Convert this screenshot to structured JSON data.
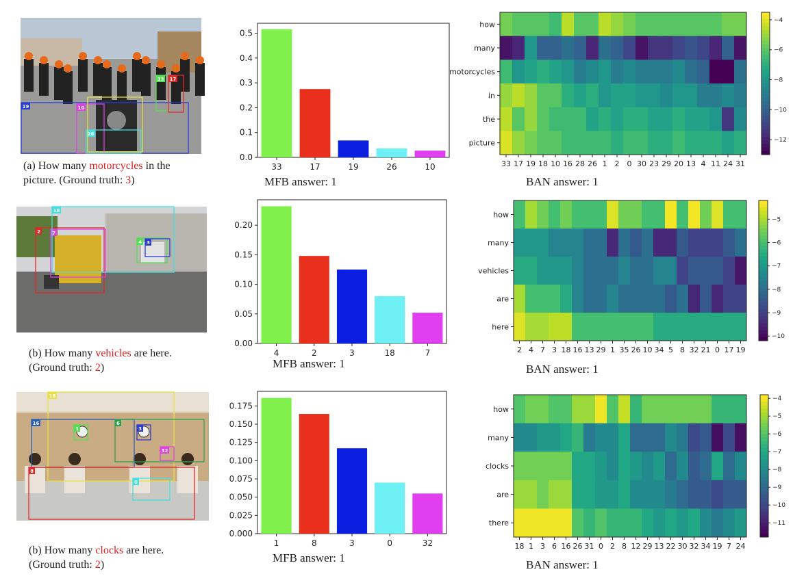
{
  "rows": [
    {
      "caption": {
        "prefix": "(a)  How many ",
        "highlight": "motorcycles",
        "suffix": " in the",
        "line2_prefix": "picture. (Ground truth: ",
        "gt": "3",
        "line2_suffix": ")"
      },
      "photo": {
        "kind": "street",
        "boxes": [
          {
            "label": "19",
            "color": "#2a3bd6"
          },
          {
            "label": "10",
            "color": "#e040e0"
          },
          {
            "label": "26",
            "color": "#40e0e0"
          },
          {
            "label": "33",
            "color": "#50e050"
          },
          {
            "label": "17",
            "color": "#e02828"
          },
          {
            "label": "",
            "color": "#e8e040"
          }
        ]
      },
      "mfb_answer": "MFB answer:  1",
      "ban_answer": "BAN answer: 1"
    },
    {
      "caption": {
        "prefix": "(b) How many ",
        "highlight": "vehicles",
        "suffix": " are here.",
        "line2_prefix": " (Ground truth:  ",
        "gt": "2",
        "line2_suffix": ")"
      },
      "photo": {
        "kind": "road",
        "boxes": [
          {
            "label": "2",
            "color": "#e02828"
          },
          {
            "label": "7",
            "color": "#e040e0"
          },
          {
            "label": "18",
            "color": "#40e0e0"
          },
          {
            "label": "4",
            "color": "#50e050"
          },
          {
            "label": "3",
            "color": "#2a3bd6"
          }
        ]
      },
      "mfb_answer": "MFB answer:  1",
      "ban_answer": "BAN answer: 1"
    },
    {
      "caption": {
        "prefix": "(b) How many ",
        "highlight": "clocks",
        "suffix": " are here.",
        "line2_prefix": " (Ground truth:  ",
        "gt": "2",
        "line2_suffix": ")"
      },
      "photo": {
        "kind": "office",
        "boxes": [
          {
            "label": "18",
            "color": "#e8e040"
          },
          {
            "label": "16",
            "color": "#2a5cb0"
          },
          {
            "label": "1",
            "color": "#50e050"
          },
          {
            "label": "6",
            "color": "#30a050"
          },
          {
            "label": "3",
            "color": "#2a3bd6"
          },
          {
            "label": "32",
            "color": "#e040e0"
          },
          {
            "label": "8",
            "color": "#e02828"
          },
          {
            "label": "0",
            "color": "#40e0e0"
          }
        ]
      },
      "mfb_answer": "MFB answer:  1",
      "ban_answer": "BAN answer: 1"
    }
  ],
  "chart_data": [
    {
      "type": "bar",
      "name": "MFB row 1",
      "categories": [
        "33",
        "17",
        "19",
        "26",
        "10"
      ],
      "values": [
        0.516,
        0.275,
        0.068,
        0.036,
        0.027
      ],
      "colors": [
        "#7ff04c",
        "#e8301c",
        "#0a1fe0",
        "#6ff0f5",
        "#e03ff0"
      ],
      "ylim": [
        0,
        0.54
      ],
      "yticks": [
        "0.0",
        "0.1",
        "0.2",
        "0.3",
        "0.4",
        "0.5"
      ],
      "ytick_values": [
        0,
        0.1,
        0.2,
        0.3,
        0.4,
        0.5
      ]
    },
    {
      "type": "bar",
      "name": "MFB row 2",
      "categories": [
        "4",
        "2",
        "3",
        "18",
        "7"
      ],
      "values": [
        0.232,
        0.148,
        0.125,
        0.08,
        0.052
      ],
      "colors": [
        "#7ff04c",
        "#e8301c",
        "#0a1fe0",
        "#6ff0f5",
        "#e03ff0"
      ],
      "ylim": [
        0,
        0.243
      ],
      "yticks": [
        "0.00",
        "0.05",
        "0.10",
        "0.15",
        "0.20"
      ],
      "ytick_values": [
        0,
        0.05,
        0.1,
        0.15,
        0.2
      ]
    },
    {
      "type": "bar",
      "name": "MFB row 3",
      "categories": [
        "1",
        "8",
        "3",
        "0",
        "32"
      ],
      "values": [
        0.186,
        0.164,
        0.117,
        0.07,
        0.055
      ],
      "colors": [
        "#7ff04c",
        "#e8301c",
        "#0a1fe0",
        "#6ff0f5",
        "#e03ff0"
      ],
      "ylim": [
        0,
        0.195
      ],
      "yticks": [
        "0.000",
        "0.025",
        "0.050",
        "0.075",
        "0.100",
        "0.125",
        "0.150",
        "0.175"
      ],
      "ytick_values": [
        0,
        0.025,
        0.05,
        0.075,
        0.1,
        0.125,
        0.15,
        0.175
      ]
    },
    {
      "type": "heatmap",
      "name": "BAN row 1",
      "rows": [
        "how",
        "many",
        "motorcycles",
        "in",
        "the",
        "picture"
      ],
      "columns": [
        "33",
        "17",
        "19",
        "18",
        "10",
        "16",
        "28",
        "26",
        "1",
        "2",
        "0",
        "30",
        "23",
        "29",
        "20",
        "13",
        "4",
        "11",
        "24",
        "31"
      ],
      "values": [
        [
          -5.5,
          -6.0,
          -6.0,
          -6.0,
          -6.5,
          -4.5,
          -6.0,
          -6.0,
          -4.5,
          -5.0,
          -5.5,
          -6.0,
          -6.0,
          -6.0,
          -6.0,
          -6.0,
          -6.0,
          -6.0,
          -5.5,
          -5.5
        ],
        [
          -12.5,
          -12.0,
          -8.0,
          -10.0,
          -10.0,
          -9.5,
          -10.0,
          -12.0,
          -9.5,
          -10.0,
          -11.0,
          -12.5,
          -11.5,
          -11.5,
          -11.0,
          -10.5,
          -11.0,
          -12.0,
          -10.0,
          -12.5
        ],
        [
          -6.5,
          -8.0,
          -7.5,
          -7.0,
          -7.5,
          -8.0,
          -9.0,
          -8.5,
          -8.0,
          -9.0,
          -8.5,
          -9.0,
          -9.0,
          -9.0,
          -8.5,
          -9.5,
          -10.0,
          -13.0,
          -13.0,
          -9.5
        ],
        [
          -5.0,
          -4.5,
          -5.0,
          -6.0,
          -6.0,
          -7.0,
          -7.5,
          -7.0,
          -8.0,
          -7.5,
          -7.5,
          -8.0,
          -8.0,
          -8.5,
          -8.0,
          -8.0,
          -9.0,
          -9.0,
          -8.5,
          -9.0
        ],
        [
          -4.5,
          -6.0,
          -5.0,
          -6.0,
          -6.5,
          -6.5,
          -6.5,
          -7.5,
          -7.0,
          -7.5,
          -7.0,
          -7.0,
          -7.5,
          -7.5,
          -7.0,
          -7.5,
          -7.5,
          -8.0,
          -11.5,
          -8.5
        ],
        [
          -4.0,
          -5.0,
          -5.5,
          -6.0,
          -6.0,
          -6.5,
          -6.5,
          -6.5,
          -6.5,
          -7.0,
          -6.5,
          -6.5,
          -7.0,
          -7.0,
          -6.5,
          -7.0,
          -7.0,
          -7.0,
          -7.5,
          -7.0
        ]
      ],
      "vmin": -13,
      "vmax": -3.5,
      "cbar_ticks": [
        -4,
        -6,
        -8,
        -10,
        -12
      ],
      "cbar_labels": [
        "−4",
        "−6",
        "−8",
        "−10",
        "−12"
      ]
    },
    {
      "type": "heatmap",
      "name": "BAN row 2",
      "rows": [
        "how",
        "many",
        "vehicles",
        "are",
        "here"
      ],
      "columns": [
        "2",
        "4",
        "7",
        "3",
        "18",
        "16",
        "13",
        "29",
        "1",
        "35",
        "26",
        "10",
        "34",
        "5",
        "8",
        "32",
        "21",
        "0",
        "17",
        "19"
      ],
      "values": [
        [
          -6.0,
          -5.0,
          -5.5,
          -6.0,
          -5.5,
          -6.0,
          -6.0,
          -6.0,
          -4.5,
          -5.5,
          -5.5,
          -6.0,
          -6.0,
          -4.3,
          -6.0,
          -4.3,
          -5.5,
          -4.5,
          -6.0,
          -6.0
        ],
        [
          -7.0,
          -7.0,
          -7.0,
          -7.5,
          -7.5,
          -7.5,
          -8.0,
          -8.0,
          -9.5,
          -8.0,
          -8.5,
          -8.0,
          -9.5,
          -9.5,
          -8.5,
          -9.0,
          -9.0,
          -9.0,
          -8.5,
          -8.0
        ],
        [
          -6.5,
          -6.5,
          -7.0,
          -7.0,
          -7.0,
          -7.5,
          -8.0,
          -8.0,
          -8.0,
          -7.5,
          -8.0,
          -8.0,
          -7.5,
          -7.5,
          -9.0,
          -8.5,
          -8.5,
          -8.5,
          -9.0,
          -9.8
        ],
        [
          -5.0,
          -6.0,
          -6.0,
          -6.0,
          -6.5,
          -7.5,
          -8.0,
          -8.0,
          -7.5,
          -8.0,
          -8.0,
          -8.0,
          -8.0,
          -8.5,
          -8.0,
          -9.5,
          -8.5,
          -9.5,
          -9.0,
          -9.0
        ],
        [
          -4.5,
          -5.0,
          -5.0,
          -4.8,
          -4.8,
          -6.0,
          -6.0,
          -6.0,
          -6.0,
          -6.0,
          -6.0,
          -6.0,
          -6.5,
          -6.5,
          -6.5,
          -6.5,
          -6.5,
          -6.5,
          -6.5,
          -6.5
        ]
      ],
      "vmin": -10.2,
      "vmax": -4.2,
      "cbar_ticks": [
        -5,
        -6,
        -7,
        -8,
        -9,
        -10
      ],
      "cbar_labels": [
        "−5",
        "−6",
        "−7",
        "−8",
        "−9",
        "−10"
      ]
    },
    {
      "type": "heatmap",
      "name": "BAN row 3",
      "rows": [
        "how",
        "many",
        "clocks",
        "are",
        "there"
      ],
      "columns": [
        "18",
        "1",
        "3",
        "6",
        "16",
        "26",
        "31",
        "0",
        "2",
        "8",
        "12",
        "29",
        "13",
        "22",
        "30",
        "32",
        "34",
        "19",
        "7",
        "24"
      ],
      "values": [
        [
          -6.0,
          -5.5,
          -5.5,
          -6.0,
          -6.0,
          -5.0,
          -5.0,
          -4.0,
          -6.0,
          -4.5,
          -6.5,
          -5.5,
          -5.5,
          -5.5,
          -5.5,
          -5.5,
          -5.5,
          -6.5,
          -6.5,
          -6.5
        ],
        [
          -8.0,
          -8.0,
          -7.5,
          -7.5,
          -7.0,
          -6.5,
          -8.5,
          -8.0,
          -8.0,
          -7.0,
          -9.0,
          -9.0,
          -9.0,
          -8.0,
          -8.5,
          -10.0,
          -9.5,
          -11.5,
          -10.0,
          -11.5
        ],
        [
          -5.5,
          -5.5,
          -5.5,
          -5.5,
          -5.5,
          -7.0,
          -7.0,
          -7.5,
          -8.0,
          -7.0,
          -7.5,
          -8.0,
          -7.5,
          -9.0,
          -8.0,
          -9.5,
          -9.0,
          -7.0,
          -9.0,
          -8.0
        ],
        [
          -5.0,
          -5.0,
          -5.5,
          -5.0,
          -5.0,
          -7.0,
          -7.0,
          -7.5,
          -7.5,
          -7.0,
          -8.0,
          -8.0,
          -8.0,
          -8.5,
          -9.0,
          -9.5,
          -9.5,
          -10.0,
          -9.5,
          -9.5
        ],
        [
          -4.0,
          -4.0,
          -4.0,
          -4.0,
          -4.0,
          -6.0,
          -6.5,
          -6.0,
          -6.5,
          -6.5,
          -6.5,
          -7.0,
          -7.5,
          -7.0,
          -7.5,
          -7.0,
          -8.0,
          -8.5,
          -8.0,
          -7.5
        ]
      ],
      "vmin": -11.8,
      "vmax": -3.8,
      "cbar_ticks": [
        -4,
        -5,
        -6,
        -7,
        -8,
        -9,
        -10,
        -11
      ],
      "cbar_labels": [
        "−4",
        "−5",
        "−6",
        "−7",
        "−8",
        "−9",
        "−10",
        "−11"
      ]
    }
  ]
}
